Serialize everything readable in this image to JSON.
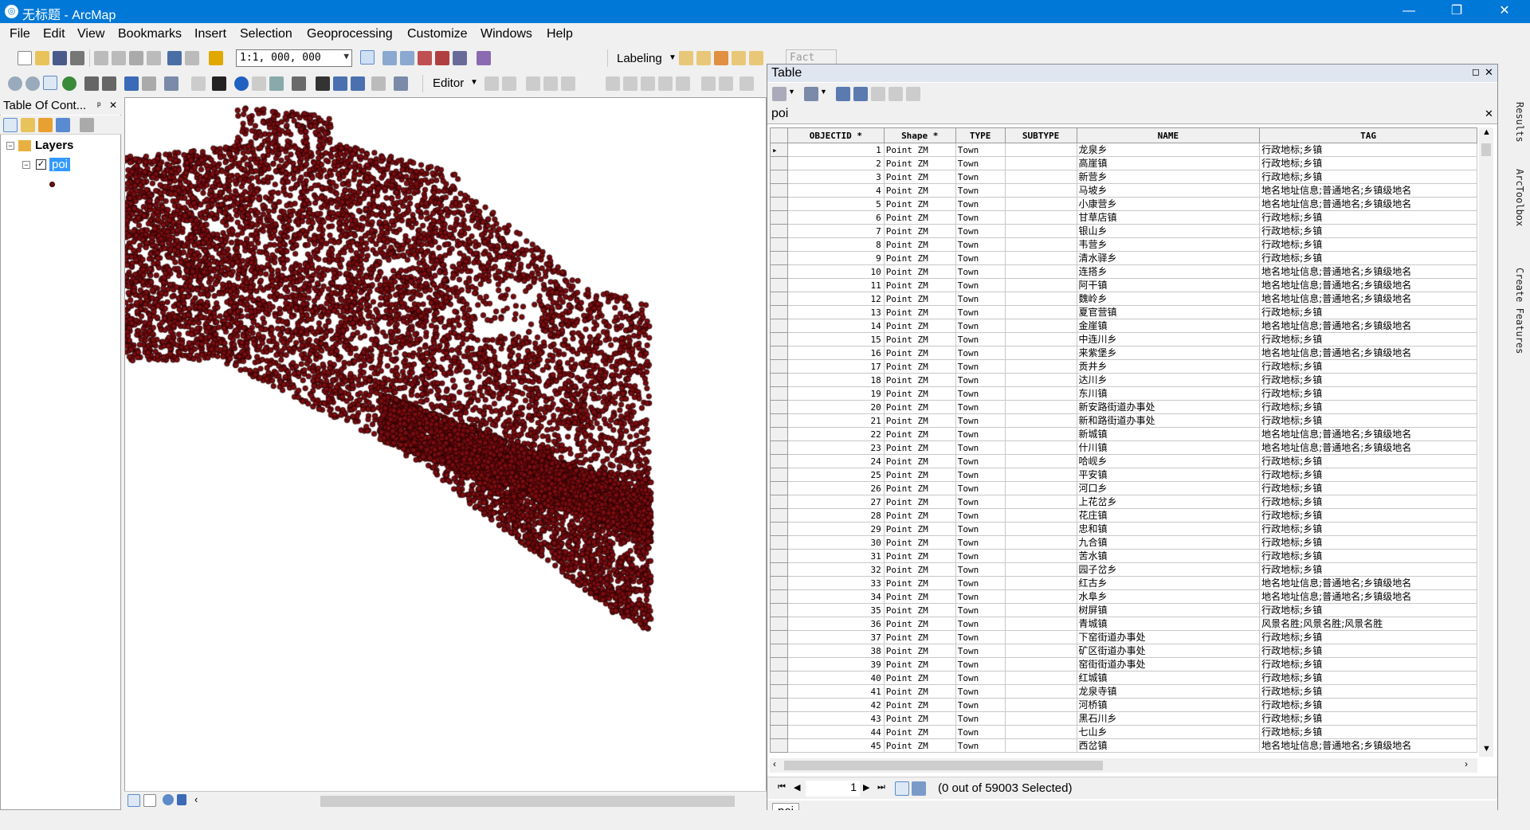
{
  "window": {
    "title": "无标题 - ArcMap",
    "minimize": "—",
    "restore": "❐",
    "close": "✕"
  },
  "menu": [
    "File",
    "Edit",
    "View",
    "Bookmarks",
    "Insert",
    "Selection",
    "Geoprocessing",
    "Customize",
    "Windows",
    "Help"
  ],
  "toolbar": {
    "scale": "1:1, 000, 000",
    "labeling": "Labeling",
    "labeling_font": "Fact",
    "editor": "Editor"
  },
  "toc": {
    "title": "Table Of Cont...",
    "pin": "ᵖ",
    "close": "✕",
    "layers_label": "Layers",
    "layer_name": "poi"
  },
  "map": {
    "point_color": "#7a0c10"
  },
  "table_window": {
    "title": "Table",
    "table_name": "poi",
    "columns": [
      "OBJECTID *",
      "Shape *",
      "TYPE",
      "SUBTYPE",
      "NAME",
      "TAG"
    ],
    "rows": [
      [
        "1",
        "Point ZM",
        "Town",
        "",
        "龙泉乡",
        "行政地标;乡镇"
      ],
      [
        "2",
        "Point ZM",
        "Town",
        "",
        "高崖镇",
        "行政地标;乡镇"
      ],
      [
        "3",
        "Point ZM",
        "Town",
        "",
        "新营乡",
        "行政地标;乡镇"
      ],
      [
        "4",
        "Point ZM",
        "Town",
        "",
        "马坡乡",
        "地名地址信息;普通地名;乡镇级地名"
      ],
      [
        "5",
        "Point ZM",
        "Town",
        "",
        "小康营乡",
        "地名地址信息;普通地名;乡镇级地名"
      ],
      [
        "6",
        "Point ZM",
        "Town",
        "",
        "甘草店镇",
        "行政地标;乡镇"
      ],
      [
        "7",
        "Point ZM",
        "Town",
        "",
        "银山乡",
        "行政地标;乡镇"
      ],
      [
        "8",
        "Point ZM",
        "Town",
        "",
        "韦营乡",
        "行政地标;乡镇"
      ],
      [
        "9",
        "Point ZM",
        "Town",
        "",
        "清水驿乡",
        "行政地标;乡镇"
      ],
      [
        "10",
        "Point ZM",
        "Town",
        "",
        "连搭乡",
        "地名地址信息;普通地名;乡镇级地名"
      ],
      [
        "11",
        "Point ZM",
        "Town",
        "",
        "阿干镇",
        "地名地址信息;普通地名;乡镇级地名"
      ],
      [
        "12",
        "Point ZM",
        "Town",
        "",
        "魏岭乡",
        "地名地址信息;普通地名;乡镇级地名"
      ],
      [
        "13",
        "Point ZM",
        "Town",
        "",
        "夏官营镇",
        "行政地标;乡镇"
      ],
      [
        "14",
        "Point ZM",
        "Town",
        "",
        "金崖镇",
        "地名地址信息;普通地名;乡镇级地名"
      ],
      [
        "15",
        "Point ZM",
        "Town",
        "",
        "中连川乡",
        "行政地标;乡镇"
      ],
      [
        "16",
        "Point ZM",
        "Town",
        "",
        "来紫堡乡",
        "地名地址信息;普通地名;乡镇级地名"
      ],
      [
        "17",
        "Point ZM",
        "Town",
        "",
        "贡井乡",
        "行政地标;乡镇"
      ],
      [
        "18",
        "Point ZM",
        "Town",
        "",
        "达川乡",
        "行政地标;乡镇"
      ],
      [
        "19",
        "Point ZM",
        "Town",
        "",
        "东川镇",
        "行政地标;乡镇"
      ],
      [
        "20",
        "Point ZM",
        "Town",
        "",
        "新安路街道办事处",
        "行政地标;乡镇"
      ],
      [
        "21",
        "Point ZM",
        "Town",
        "",
        "新和路街道办事处",
        "行政地标;乡镇"
      ],
      [
        "22",
        "Point ZM",
        "Town",
        "",
        "新城镇",
        "地名地址信息;普通地名;乡镇级地名"
      ],
      [
        "23",
        "Point ZM",
        "Town",
        "",
        "什川镇",
        "地名地址信息;普通地名;乡镇级地名"
      ],
      [
        "24",
        "Point ZM",
        "Town",
        "",
        "哈岘乡",
        "行政地标;乡镇"
      ],
      [
        "25",
        "Point ZM",
        "Town",
        "",
        "平安镇",
        "行政地标;乡镇"
      ],
      [
        "26",
        "Point ZM",
        "Town",
        "",
        "河口乡",
        "行政地标;乡镇"
      ],
      [
        "27",
        "Point ZM",
        "Town",
        "",
        "上花岔乡",
        "行政地标;乡镇"
      ],
      [
        "28",
        "Point ZM",
        "Town",
        "",
        "花庄镇",
        "行政地标;乡镇"
      ],
      [
        "29",
        "Point ZM",
        "Town",
        "",
        "忠和镇",
        "行政地标;乡镇"
      ],
      [
        "30",
        "Point ZM",
        "Town",
        "",
        "九合镇",
        "行政地标;乡镇"
      ],
      [
        "31",
        "Point ZM",
        "Town",
        "",
        "苦水镇",
        "行政地标;乡镇"
      ],
      [
        "32",
        "Point ZM",
        "Town",
        "",
        "园子岔乡",
        "行政地标;乡镇"
      ],
      [
        "33",
        "Point ZM",
        "Town",
        "",
        "红古乡",
        "地名地址信息;普通地名;乡镇级地名"
      ],
      [
        "34",
        "Point ZM",
        "Town",
        "",
        "水阜乡",
        "地名地址信息;普通地名;乡镇级地名"
      ],
      [
        "35",
        "Point ZM",
        "Town",
        "",
        "树屏镇",
        "行政地标;乡镇"
      ],
      [
        "36",
        "Point ZM",
        "Town",
        "",
        "青城镇",
        "风景名胜;风景名胜;风景名胜"
      ],
      [
        "37",
        "Point ZM",
        "Town",
        "",
        "下窑街道办事处",
        "行政地标;乡镇"
      ],
      [
        "38",
        "Point ZM",
        "Town",
        "",
        "矿区街道办事处",
        "行政地标;乡镇"
      ],
      [
        "39",
        "Point ZM",
        "Town",
        "",
        "窑街街道办事处",
        "行政地标;乡镇"
      ],
      [
        "40",
        "Point ZM",
        "Town",
        "",
        "红城镇",
        "行政地标;乡镇"
      ],
      [
        "41",
        "Point ZM",
        "Town",
        "",
        "龙泉寺镇",
        "行政地标;乡镇"
      ],
      [
        "42",
        "Point ZM",
        "Town",
        "",
        "河桥镇",
        "行政地标;乡镇"
      ],
      [
        "43",
        "Point ZM",
        "Town",
        "",
        "黑石川乡",
        "行政地标;乡镇"
      ],
      [
        "44",
        "Point ZM",
        "Town",
        "",
        "七山乡",
        "行政地标;乡镇"
      ],
      [
        "45",
        "Point ZM",
        "Town",
        "",
        "西岔镇",
        "地名地址信息;普通地名;乡镇级地名"
      ]
    ],
    "current_record": "1",
    "selection_status": "(0 out of 59003 Selected)",
    "tab_label": "poi"
  },
  "right_dock": {
    "results": "Results",
    "arctoolbox": "ArcToolbox",
    "create_features": "Create Features"
  },
  "colors": {
    "titlebar": "#0078d7",
    "point": "#7a0c10",
    "point_outline": "#1a0000",
    "selected_layer": "#3399ff"
  }
}
